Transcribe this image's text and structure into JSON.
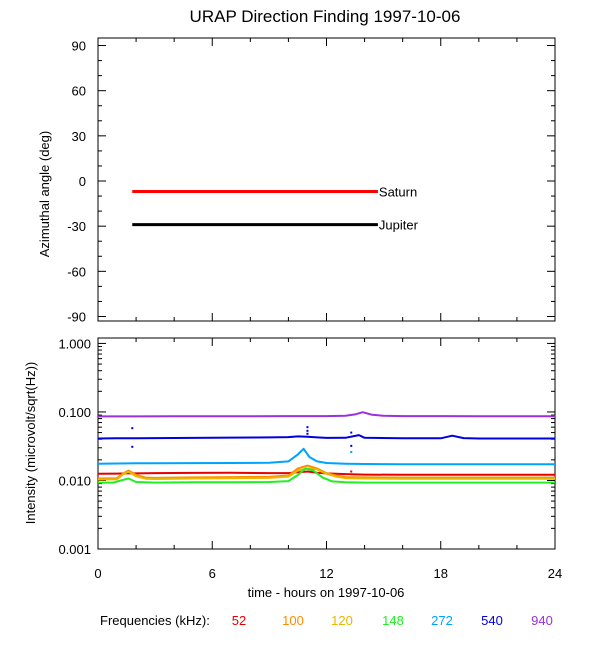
{
  "chart_data": [
    {
      "type": "line",
      "title": "URAP Direction Finding  1997-10-06",
      "xlabel": "",
      "ylabel": "Azimuthal angle (deg)",
      "xlim": [
        0,
        24
      ],
      "ylim": [
        -93,
        95
      ],
      "yticks": [
        90,
        60,
        30,
        0,
        -30,
        -60,
        -90
      ],
      "series": [
        {
          "name": "Saturn",
          "color": "#ff0000",
          "x": [
            1.8,
            14.7
          ],
          "y": [
            -7,
            -7
          ]
        },
        {
          "name": "Jupiter",
          "color": "#000000",
          "x": [
            1.8,
            14.7
          ],
          "y": [
            -29,
            -29
          ]
        }
      ]
    },
    {
      "type": "line",
      "scale": "log",
      "xlabel": "time - hours on 1997-10-06",
      "ylabel": "Intensity (microvolt/sqrt(Hz))",
      "xlim": [
        0,
        24
      ],
      "ylim": [
        0.001,
        1.2
      ],
      "xticks": [
        0,
        6,
        12,
        18,
        24
      ],
      "ytick_labels": [
        "1.000",
        "0.100",
        "0.010",
        "0.001"
      ],
      "legend_label": "Frequencies (kHz):",
      "series": [
        {
          "name": "52",
          "color": "#e60000",
          "x": [
            0,
            1,
            1.5,
            2,
            3,
            5,
            7,
            9,
            10,
            10.5,
            11,
            11.5,
            12,
            13,
            14,
            16,
            18,
            20,
            22,
            24
          ],
          "y": [
            0.0125,
            0.0126,
            0.0127,
            0.0127,
            0.0128,
            0.0129,
            0.013,
            0.0128,
            0.0128,
            0.0132,
            0.0135,
            0.013,
            0.0127,
            0.0124,
            0.0122,
            0.0121,
            0.0121,
            0.0121,
            0.0121,
            0.0121
          ]
        },
        {
          "name": "100",
          "color": "#ff8c00",
          "x": [
            0,
            1,
            1.3,
            1.6,
            2,
            2.5,
            3,
            5,
            7,
            9,
            10,
            10.5,
            11,
            11.5,
            12,
            12.5,
            13,
            14,
            16,
            18,
            20,
            22,
            24
          ],
          "y": [
            0.0107,
            0.0108,
            0.0125,
            0.014,
            0.012,
            0.011,
            0.0109,
            0.0111,
            0.0112,
            0.0113,
            0.0118,
            0.015,
            0.0165,
            0.015,
            0.0128,
            0.0118,
            0.0112,
            0.0111,
            0.011,
            0.011,
            0.011,
            0.011,
            0.011
          ]
        },
        {
          "name": "120",
          "color": "#e6b800",
          "x": [
            0,
            1,
            1.3,
            1.6,
            2,
            2.5,
            3,
            5,
            7,
            9,
            10,
            10.5,
            11,
            11.5,
            12,
            12.5,
            13,
            14,
            16,
            18,
            20,
            22,
            24
          ],
          "y": [
            0.0103,
            0.0104,
            0.0122,
            0.0135,
            0.0115,
            0.0106,
            0.0105,
            0.0107,
            0.0108,
            0.0109,
            0.0114,
            0.014,
            0.015,
            0.0145,
            0.0125,
            0.0114,
            0.0108,
            0.0107,
            0.0106,
            0.0106,
            0.0106,
            0.0106,
            0.0106
          ]
        },
        {
          "name": "148",
          "color": "#22ee22",
          "x": [
            0,
            0.8,
            1.2,
            1.6,
            2,
            3,
            5,
            7,
            9,
            10,
            10.5,
            10.9,
            11.3,
            11.8,
            12.3,
            13,
            14,
            16,
            18,
            20,
            22,
            24
          ],
          "y": [
            0.0093,
            0.0093,
            0.01,
            0.0107,
            0.0095,
            0.0093,
            0.0094,
            0.0094,
            0.0095,
            0.0098,
            0.012,
            0.015,
            0.014,
            0.011,
            0.0097,
            0.0094,
            0.0093,
            0.0093,
            0.0093,
            0.0093,
            0.0093,
            0.0093
          ]
        },
        {
          "name": "272",
          "color": "#00a2ff",
          "x": [
            0,
            1,
            2,
            3,
            5,
            7,
            9,
            10,
            10.5,
            10.8,
            11.1,
            11.5,
            12,
            13,
            14,
            16,
            18,
            20,
            22,
            24
          ],
          "y": [
            0.0175,
            0.0177,
            0.0178,
            0.0178,
            0.0179,
            0.018,
            0.0182,
            0.019,
            0.024,
            0.029,
            0.022,
            0.019,
            0.018,
            0.0176,
            0.0174,
            0.0173,
            0.0172,
            0.0172,
            0.0172,
            0.0172
          ]
        },
        {
          "name": "540",
          "color": "#0000dd",
          "x": [
            0,
            1,
            2,
            3,
            5,
            7,
            9,
            10,
            10.5,
            11,
            11.5,
            12,
            13,
            13.7,
            14,
            16,
            18,
            18.6,
            19.2,
            20,
            22,
            24
          ],
          "y": [
            0.041,
            0.0412,
            0.0414,
            0.0415,
            0.0418,
            0.0422,
            0.0425,
            0.043,
            0.044,
            0.0435,
            0.0425,
            0.0418,
            0.042,
            0.046,
            0.042,
            0.0412,
            0.0412,
            0.045,
            0.0415,
            0.041,
            0.041,
            0.041
          ]
        },
        {
          "name": "940",
          "color": "#9a30e0",
          "x": [
            0,
            2,
            4,
            6,
            8,
            10,
            12,
            13,
            13.5,
            13.9,
            14.4,
            15,
            16,
            18,
            20,
            22,
            24
          ],
          "y": [
            0.086,
            0.0862,
            0.0864,
            0.0866,
            0.0868,
            0.087,
            0.087,
            0.088,
            0.092,
            0.099,
            0.091,
            0.088,
            0.087,
            0.087,
            0.0868,
            0.0868,
            0.0868
          ]
        }
      ],
      "points": [
        {
          "color": "#0000dd",
          "x": 1.8,
          "y": 0.058
        },
        {
          "color": "#0000dd",
          "x": 1.8,
          "y": 0.031
        },
        {
          "color": "#0000dd",
          "x": 11.0,
          "y": 0.06
        },
        {
          "color": "#0000dd",
          "x": 11.0,
          "y": 0.053
        },
        {
          "color": "#0000dd",
          "x": 11.0,
          "y": 0.048
        },
        {
          "color": "#0000dd",
          "x": 13.3,
          "y": 0.05
        },
        {
          "color": "#0000dd",
          "x": 13.3,
          "y": 0.032
        },
        {
          "color": "#00a2ff",
          "x": 13.3,
          "y": 0.026
        },
        {
          "color": "#e60000",
          "x": 13.3,
          "y": 0.0135
        }
      ]
    }
  ]
}
